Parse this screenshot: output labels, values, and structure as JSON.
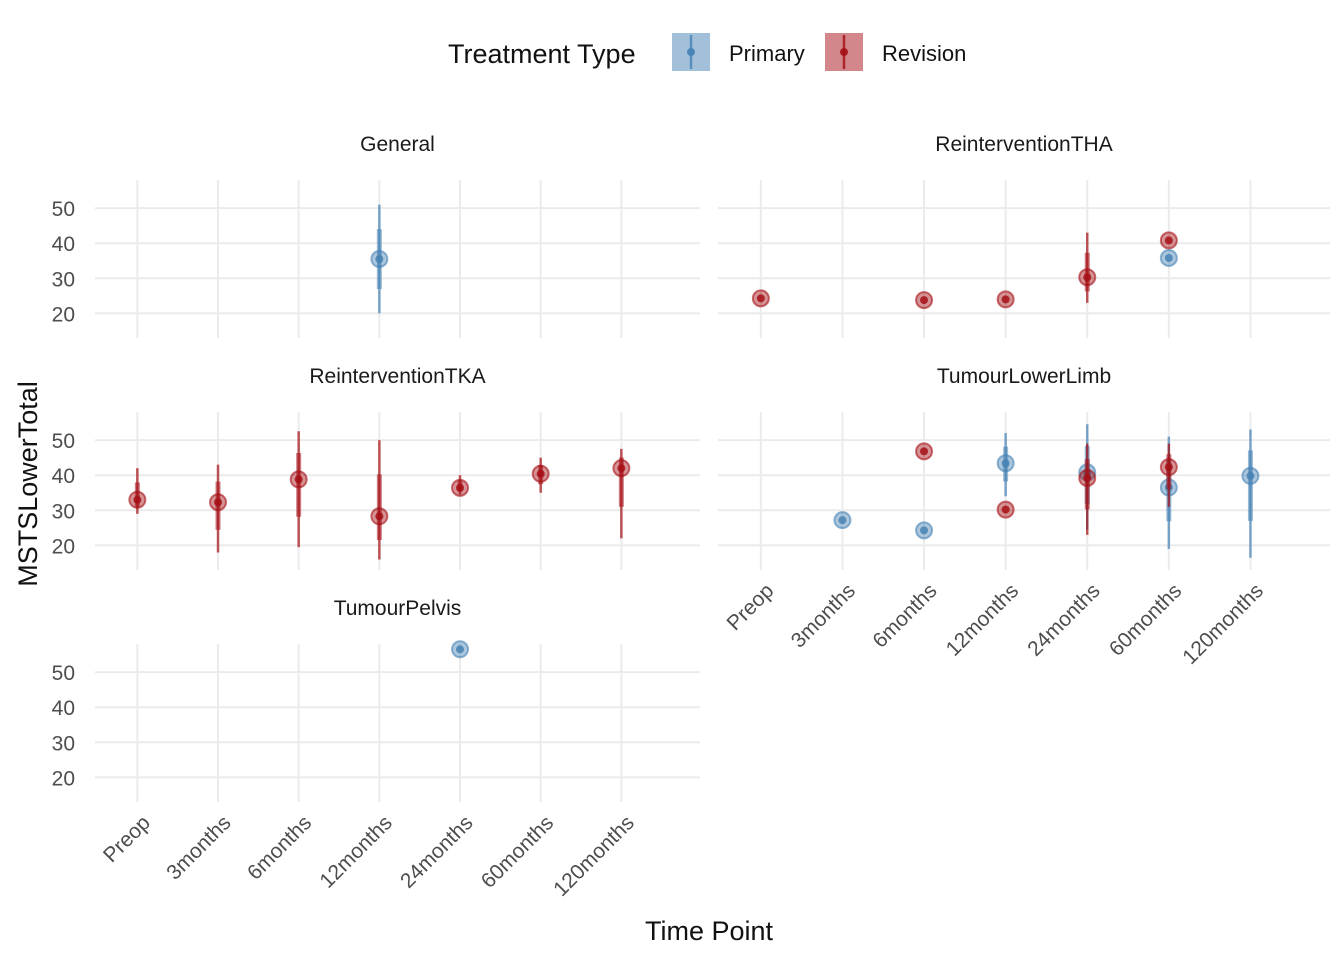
{
  "chart_data": {
    "type": "scatter",
    "legend": {
      "title": "Treatment Type",
      "position": "top",
      "items": [
        {
          "name": "Primary",
          "color": "#4682B4"
        },
        {
          "name": "Revision",
          "color": "#A50F15"
        }
      ]
    },
    "xlabel": "Time Point",
    "ylabel": "MSTSLowerTotal",
    "categories": [
      "Preop",
      "3months",
      "6months",
      "12months",
      "24months",
      "60months",
      "120months"
    ],
    "ylim": [
      13,
      58
    ],
    "yticks": [
      20,
      30,
      40,
      50
    ],
    "grid": true,
    "panels": [
      {
        "title": "General",
        "points": [
          {
            "x": "12months",
            "group": "Primary",
            "y": 35.5,
            "interval": [
              20,
              51
            ]
          }
        ]
      },
      {
        "title": "ReinterventionTHA",
        "points": [
          {
            "x": "Preop",
            "group": "Revision",
            "y": 24.3
          },
          {
            "x": "6months",
            "group": "Revision",
            "y": 23.8
          },
          {
            "x": "12months",
            "group": "Revision",
            "y": 24.0
          },
          {
            "x": "24months",
            "group": "Revision",
            "y": 30.3,
            "interval": [
              23,
              43
            ]
          },
          {
            "x": "60months",
            "group": "Revision",
            "y": 40.8
          },
          {
            "x": "60months",
            "group": "Primary",
            "y": 35.8
          }
        ]
      },
      {
        "title": "ReinterventionTKA",
        "points": [
          {
            "x": "Preop",
            "group": "Revision",
            "y": 33.0,
            "interval": [
              29,
              42
            ]
          },
          {
            "x": "3months",
            "group": "Revision",
            "y": 32.3,
            "interval": [
              18,
              43
            ]
          },
          {
            "x": "6months",
            "group": "Revision",
            "y": 38.8,
            "interval": [
              19.5,
              52.5
            ]
          },
          {
            "x": "12months",
            "group": "Revision",
            "y": 28.3,
            "interval": [
              16,
              50
            ]
          },
          {
            "x": "24months",
            "group": "Revision",
            "y": 36.4,
            "interval": [
              34.5,
              40
            ]
          },
          {
            "x": "60months",
            "group": "Revision",
            "y": 40.4,
            "interval": [
              35,
              45
            ]
          },
          {
            "x": "120months",
            "group": "Revision",
            "y": 42.0,
            "interval": [
              22,
              47.5
            ]
          }
        ]
      },
      {
        "title": "TumourLowerLimb",
        "points": [
          {
            "x": "3months",
            "group": "Primary",
            "y": 27.2
          },
          {
            "x": "6months",
            "group": "Primary",
            "y": 24.3
          },
          {
            "x": "6months",
            "group": "Revision",
            "y": 46.8
          },
          {
            "x": "12months",
            "group": "Primary",
            "y": 43.4,
            "interval": [
              34,
              52
            ]
          },
          {
            "x": "12months",
            "group": "Revision",
            "y": 30.2
          },
          {
            "x": "24months",
            "group": "Primary",
            "y": 40.8,
            "interval": [
              24.5,
              54.5
            ]
          },
          {
            "x": "24months",
            "group": "Revision",
            "y": 39.2,
            "interval": [
              23,
              49
            ]
          },
          {
            "x": "60months",
            "group": "Primary",
            "y": 36.5,
            "interval": [
              19,
              51
            ]
          },
          {
            "x": "60months",
            "group": "Revision",
            "y": 42.3,
            "interval": [
              31,
              49
            ]
          },
          {
            "x": "120months",
            "group": "Primary",
            "y": 39.8,
            "interval": [
              16.5,
              53
            ]
          }
        ]
      },
      {
        "title": "TumourPelvis",
        "points": [
          {
            "x": "24months",
            "group": "Primary",
            "y": 56.5
          }
        ]
      }
    ]
  }
}
